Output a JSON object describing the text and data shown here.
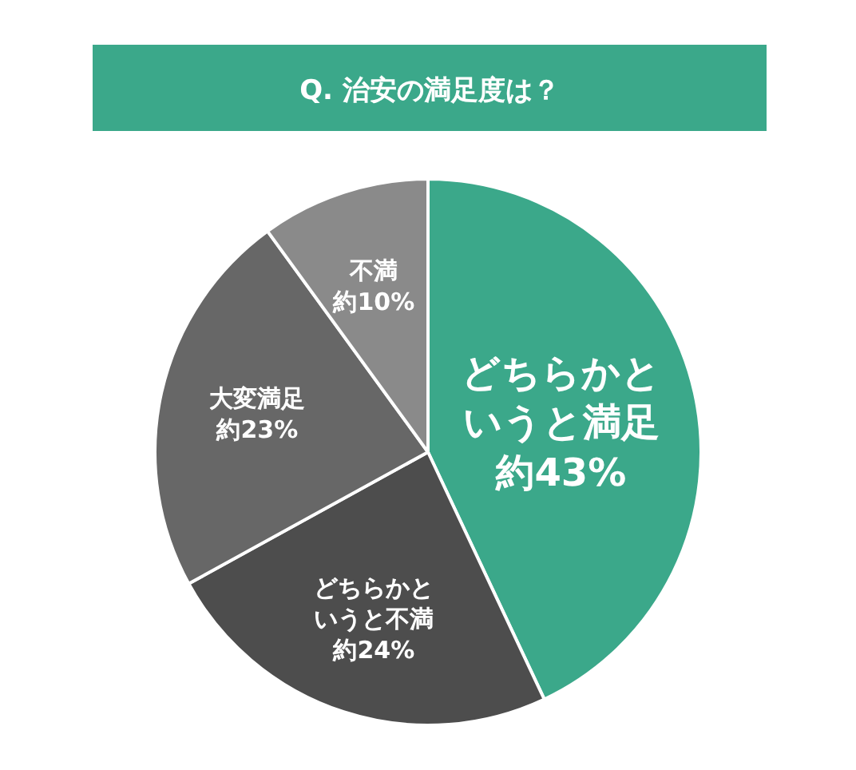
{
  "chart_data": {
    "type": "pie",
    "title": "Q. 治安の満足度は？",
    "categories": [
      "どちらかというと満足",
      "どちらかというと不満",
      "大変満足",
      "不満"
    ],
    "values": [
      43,
      24,
      23,
      10
    ],
    "colors": [
      "#3ba88a",
      "#4d4d4d",
      "#676767",
      "#8a8a8a"
    ],
    "value_labels": [
      "約43%",
      "約24%",
      "約23%",
      "約10%"
    ]
  }
}
